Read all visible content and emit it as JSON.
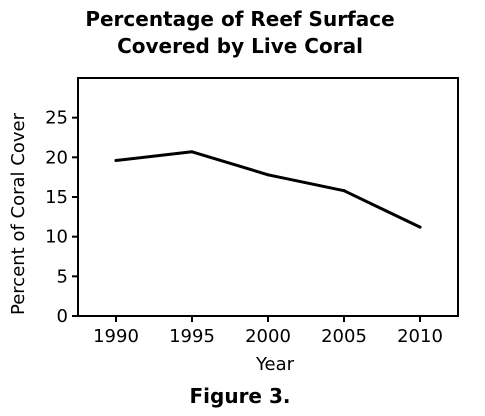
{
  "chart_data": {
    "type": "line",
    "title_lines": [
      "Percentage of Reef Surface",
      "Covered by Live Coral"
    ],
    "xlabel": "Year",
    "ylabel": "Percent of Coral Cover",
    "x": [
      1990,
      1995,
      2000,
      2005,
      2010
    ],
    "x_tick_labels": [
      "1990",
      "1995",
      "2000",
      "2005",
      "2010"
    ],
    "y_ticks": [
      0,
      5,
      10,
      15,
      20,
      25
    ],
    "y_tick_labels": [
      "0",
      "5",
      "10",
      "15",
      "20",
      "25"
    ],
    "xlim": [
      1987.5,
      2012.5
    ],
    "ylim": [
      0,
      30
    ],
    "grid": false,
    "series": [
      {
        "values": [
          19.6,
          20.7,
          17.8,
          15.8,
          11.2
        ],
        "color": "#000000"
      }
    ]
  },
  "caption": "Figure 3."
}
